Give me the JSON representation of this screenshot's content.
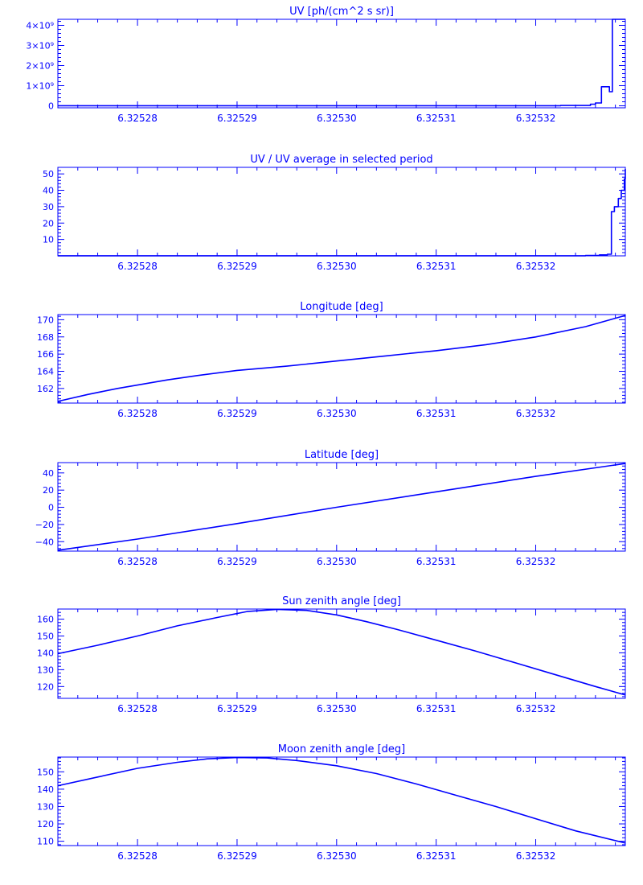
{
  "colors": {
    "foreground": "#0000ff",
    "background": "#ffffff"
  },
  "shared_x_ticks": [
    "6.32528",
    "6.32529",
    "6.32530",
    "6.32531",
    "6.32532"
  ],
  "chart_data": [
    {
      "type": "line",
      "title": "UV [ph/(cm^2 s sr)]",
      "xlabel": "",
      "ylabel": "",
      "xlim": [
        6.325272,
        6.325329
      ],
      "ylim": [
        -100000000.0,
        4300000000.0
      ],
      "y_ticks": [
        0,
        1000000000.0,
        2000000000.0,
        3000000000.0,
        4000000000.0
      ],
      "y_tick_labels": [
        "0",
        "1×10⁹",
        "2×10⁹",
        "3×10⁹",
        "4×10⁹"
      ],
      "x_ticks": [
        6.32528,
        6.32529,
        6.3253,
        6.32531,
        6.32532
      ],
      "x_tick_labels": [
        "6.32528",
        "6.32529",
        "6.32530",
        "6.32531",
        "6.32532"
      ],
      "step": true,
      "series": [
        {
          "x": [
            6.325272,
            6.32532,
            6.3253225,
            6.3253255,
            6.325326,
            6.3253266,
            6.3253274,
            6.3253277,
            6.3253283,
            6.325329
          ],
          "y": [
            5000000.0,
            5000000.0,
            15000000.0,
            80000000.0,
            140000000.0,
            950000000.0,
            700000000.0,
            4300000000.0,
            4300000000.0,
            4300000000.0
          ]
        }
      ]
    },
    {
      "type": "line",
      "title": "UV / UV average in selected period",
      "xlabel": "",
      "ylabel": "",
      "xlim": [
        6.325272,
        6.325329
      ],
      "ylim": [
        0,
        54
      ],
      "y_ticks": [
        10,
        20,
        30,
        40,
        50
      ],
      "y_tick_labels": [
        "10",
        "20",
        "30",
        "40",
        "50"
      ],
      "x_ticks": [
        6.32528,
        6.32529,
        6.3253,
        6.32531,
        6.32532
      ],
      "x_tick_labels": [
        "6.32528",
        "6.32529",
        "6.32530",
        "6.32531",
        "6.32532"
      ],
      "step": true,
      "series": [
        {
          "x": [
            6.325272,
            6.32532,
            6.325325,
            6.3253264,
            6.3253272,
            6.3253276,
            6.3253279,
            6.3253283,
            6.3253286,
            6.3253289,
            6.325329
          ],
          "y": [
            0.05,
            0.05,
            0.2,
            0.6,
            1,
            27,
            30,
            35,
            40,
            47,
            53
          ]
        }
      ]
    },
    {
      "type": "line",
      "title": "Longitude [deg]",
      "xlabel": "",
      "ylabel": "",
      "xlim": [
        6.325272,
        6.325329
      ],
      "ylim": [
        160.3,
        170.6
      ],
      "y_ticks": [
        162,
        164,
        166,
        168,
        170
      ],
      "y_tick_labels": [
        "162",
        "164",
        "166",
        "168",
        "170"
      ],
      "x_ticks": [
        6.32528,
        6.32529,
        6.3253,
        6.32531,
        6.32532
      ],
      "x_tick_labels": [
        "6.32528",
        "6.32529",
        "6.32530",
        "6.32531",
        "6.32532"
      ],
      "series": [
        {
          "x": [
            6.325272,
            6.325275,
            6.325278,
            6.32528,
            6.325283,
            6.325286,
            6.32529,
            6.325295,
            6.3253,
            6.325305,
            6.32531,
            6.325315,
            6.32532,
            6.325325,
            6.325329
          ],
          "y": [
            160.5,
            161.3,
            162.0,
            162.4,
            163.0,
            163.5,
            164.1,
            164.6,
            165.2,
            165.8,
            166.4,
            167.1,
            168.0,
            169.2,
            170.5
          ]
        }
      ]
    },
    {
      "type": "line",
      "title": "Latitude [deg]",
      "xlabel": "",
      "ylabel": "",
      "xlim": [
        6.325272,
        6.325329
      ],
      "ylim": [
        -51,
        52
      ],
      "y_ticks": [
        -40,
        -20,
        0,
        20,
        40
      ],
      "y_tick_labels": [
        "−40",
        "−20",
        "0",
        "20",
        "40"
      ],
      "x_ticks": [
        6.32528,
        6.32529,
        6.3253,
        6.32531,
        6.32532
      ],
      "x_tick_labels": [
        "6.32528",
        "6.32529",
        "6.32530",
        "6.32531",
        "6.32532"
      ],
      "series": [
        {
          "x": [
            6.325272,
            6.32528,
            6.32529,
            6.3253,
            6.32531,
            6.32532,
            6.325329
          ],
          "y": [
            -50,
            -37,
            -19,
            0,
            18,
            36,
            51
          ]
        }
      ]
    },
    {
      "type": "line",
      "title": "Sun zenith angle [deg]",
      "xlabel": "",
      "ylabel": "",
      "xlim": [
        6.325272,
        6.325329
      ],
      "ylim": [
        113,
        166
      ],
      "y_ticks": [
        120,
        130,
        140,
        150,
        160
      ],
      "y_tick_labels": [
        "120",
        "130",
        "140",
        "150",
        "160"
      ],
      "x_ticks": [
        6.32528,
        6.32529,
        6.3253,
        6.32531,
        6.32532
      ],
      "x_tick_labels": [
        "6.32528",
        "6.32529",
        "6.32530",
        "6.32531",
        "6.32532"
      ],
      "series": [
        {
          "x": [
            6.325272,
            6.325276,
            6.32528,
            6.325284,
            6.325288,
            6.325291,
            6.325294,
            6.325297,
            6.3253,
            6.325303,
            6.325306,
            6.32531,
            6.325314,
            6.325318,
            6.325322,
            6.325326,
            6.325329
          ],
          "y": [
            139.5,
            144.5,
            150,
            156,
            161,
            164.5,
            165.8,
            165.2,
            162.5,
            158.5,
            154,
            147.5,
            141,
            134,
            127,
            120,
            115
          ]
        }
      ]
    },
    {
      "type": "line",
      "title": "Moon zenith angle [deg]",
      "xlabel": "",
      "ylabel": "",
      "xlim": [
        6.325272,
        6.325329
      ],
      "ylim": [
        107.5,
        158.5
      ],
      "y_ticks": [
        110,
        120,
        130,
        140,
        150
      ],
      "y_tick_labels": [
        "110",
        "120",
        "130",
        "140",
        "150"
      ],
      "x_ticks": [
        6.32528,
        6.32529,
        6.3253,
        6.32531,
        6.32532
      ],
      "x_tick_labels": [
        "6.32528",
        "6.32529",
        "6.32530",
        "6.32531",
        "6.32532"
      ],
      "series": [
        {
          "x": [
            6.325272,
            6.325276,
            6.32528,
            6.325284,
            6.325287,
            6.32529,
            6.325293,
            6.325296,
            6.3253,
            6.325304,
            6.325308,
            6.325312,
            6.325316,
            6.32532,
            6.325324,
            6.325329
          ],
          "y": [
            142,
            147,
            152,
            155.5,
            157.5,
            158.2,
            158,
            156.5,
            153.5,
            149,
            143,
            136.5,
            130,
            123,
            116,
            109
          ]
        }
      ]
    }
  ]
}
